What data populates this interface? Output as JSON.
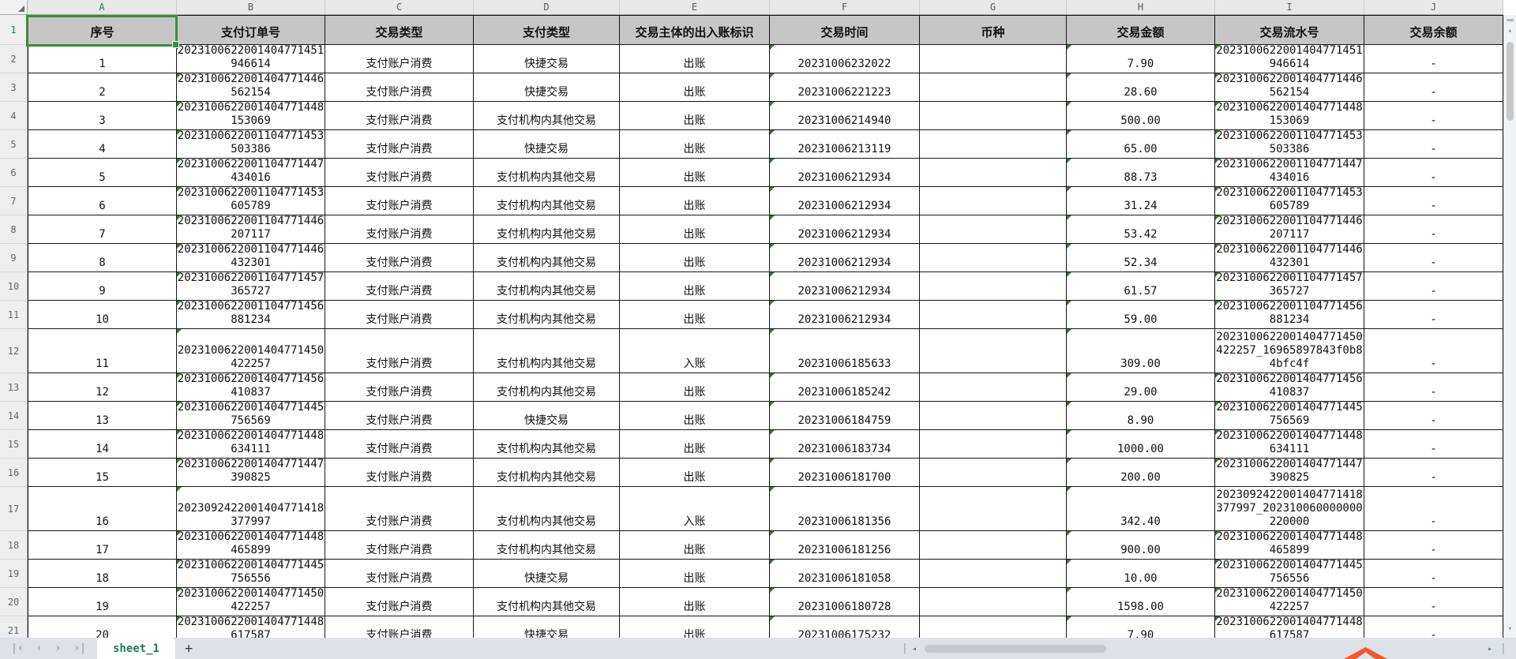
{
  "colors": {
    "selection_green": "#3f8a3f",
    "indicator_green": "#2e7d32",
    "header_bg": "#c6c6c6",
    "letters_bg": "#e8e8e8",
    "tabbar_bg": "#dce2e7",
    "active_tab_text": "#1e7a5e",
    "accent_orange": "#f15a2b"
  },
  "grid": {
    "selected_cell": "A1",
    "column_letters": [
      "A",
      "B",
      "C",
      "D",
      "E",
      "F",
      "G",
      "H",
      "I",
      "J"
    ],
    "row_numbers": [
      "1",
      "2",
      "3",
      "4",
      "5",
      "6",
      "7",
      "8",
      "9",
      "10",
      "11",
      "12",
      "13",
      "14",
      "15",
      "16",
      "17",
      "18",
      "19",
      "20",
      "21"
    ],
    "headers": [
      "序号",
      "支付订单号",
      "交易类型",
      "支付类型",
      "交易主体的出入账标识",
      "交易时间",
      "币种",
      "交易金额",
      "交易流水号",
      "交易余额"
    ],
    "rows": [
      {
        "seq": "1",
        "order_no": "2023100622001404771451946614",
        "txn_type": "支付账户消费",
        "pay_type": "快捷交易",
        "flow_flag": "出账",
        "time": "20231006232022",
        "currency": "",
        "amount": "7.90",
        "flow_no": "2023100622001404771451946614",
        "balance": "-"
      },
      {
        "seq": "2",
        "order_no": "2023100622001404771446562154",
        "txn_type": "支付账户消费",
        "pay_type": "快捷交易",
        "flow_flag": "出账",
        "time": "20231006221223",
        "currency": "",
        "amount": "28.60",
        "flow_no": "2023100622001404771446562154",
        "balance": "-"
      },
      {
        "seq": "3",
        "order_no": "2023100622001404771448153069",
        "txn_type": "支付账户消费",
        "pay_type": "支付机构内其他交易",
        "flow_flag": "出账",
        "time": "20231006214940",
        "currency": "",
        "amount": "500.00",
        "flow_no": "2023100622001404771448153069",
        "balance": "-"
      },
      {
        "seq": "4",
        "order_no": "2023100622001104771453503386",
        "txn_type": "支付账户消费",
        "pay_type": "快捷交易",
        "flow_flag": "出账",
        "time": "20231006213119",
        "currency": "",
        "amount": "65.00",
        "flow_no": "2023100622001104771453503386",
        "balance": "-"
      },
      {
        "seq": "5",
        "order_no": "2023100622001104771447434016",
        "txn_type": "支付账户消费",
        "pay_type": "支付机构内其他交易",
        "flow_flag": "出账",
        "time": "20231006212934",
        "currency": "",
        "amount": "88.73",
        "flow_no": "2023100622001104771447434016",
        "balance": "-"
      },
      {
        "seq": "6",
        "order_no": "2023100622001104771453605789",
        "txn_type": "支付账户消费",
        "pay_type": "支付机构内其他交易",
        "flow_flag": "出账",
        "time": "20231006212934",
        "currency": "",
        "amount": "31.24",
        "flow_no": "2023100622001104771453605789",
        "balance": "-"
      },
      {
        "seq": "7",
        "order_no": "2023100622001104771446207117",
        "txn_type": "支付账户消费",
        "pay_type": "支付机构内其他交易",
        "flow_flag": "出账",
        "time": "20231006212934",
        "currency": "",
        "amount": "53.42",
        "flow_no": "2023100622001104771446207117",
        "balance": "-"
      },
      {
        "seq": "8",
        "order_no": "2023100622001104771446432301",
        "txn_type": "支付账户消费",
        "pay_type": "支付机构内其他交易",
        "flow_flag": "出账",
        "time": "20231006212934",
        "currency": "",
        "amount": "52.34",
        "flow_no": "2023100622001104771446432301",
        "balance": "-"
      },
      {
        "seq": "9",
        "order_no": "2023100622001104771457365727",
        "txn_type": "支付账户消费",
        "pay_type": "支付机构内其他交易",
        "flow_flag": "出账",
        "time": "20231006212934",
        "currency": "",
        "amount": "61.57",
        "flow_no": "2023100622001104771457365727",
        "balance": "-"
      },
      {
        "seq": "10",
        "order_no": "2023100622001104771456881234",
        "txn_type": "支付账户消费",
        "pay_type": "支付机构内其他交易",
        "flow_flag": "出账",
        "time": "20231006212934",
        "currency": "",
        "amount": "59.00",
        "flow_no": "2023100622001104771456881234",
        "balance": "-"
      },
      {
        "seq": "11",
        "order_no": "2023100622001404771450422257",
        "txn_type": "支付账户消费",
        "pay_type": "支付机构内其他交易",
        "flow_flag": "入账",
        "time": "20231006185633",
        "currency": "",
        "amount": "309.00",
        "flow_no": "2023100622001404771450422257_16965897843f0b84bfc4f",
        "balance": "-"
      },
      {
        "seq": "12",
        "order_no": "2023100622001404771456410837",
        "txn_type": "支付账户消费",
        "pay_type": "支付机构内其他交易",
        "flow_flag": "出账",
        "time": "20231006185242",
        "currency": "",
        "amount": "29.00",
        "flow_no": "2023100622001404771456410837",
        "balance": "-"
      },
      {
        "seq": "13",
        "order_no": "2023100622001404771445756569",
        "txn_type": "支付账户消费",
        "pay_type": "快捷交易",
        "flow_flag": "出账",
        "time": "20231006184759",
        "currency": "",
        "amount": "8.90",
        "flow_no": "2023100622001404771445756569",
        "balance": "-"
      },
      {
        "seq": "14",
        "order_no": "2023100622001404771448634111",
        "txn_type": "支付账户消费",
        "pay_type": "支付机构内其他交易",
        "flow_flag": "出账",
        "time": "20231006183734",
        "currency": "",
        "amount": "1000.00",
        "flow_no": "2023100622001404771448634111",
        "balance": "-"
      },
      {
        "seq": "15",
        "order_no": "2023100622001404771447390825",
        "txn_type": "支付账户消费",
        "pay_type": "支付机构内其他交易",
        "flow_flag": "出账",
        "time": "20231006181700",
        "currency": "",
        "amount": "200.00",
        "flow_no": "2023100622001404771447390825",
        "balance": "-"
      },
      {
        "seq": "16",
        "order_no": "2023092422001404771418377997",
        "txn_type": "支付账户消费",
        "pay_type": "支付机构内其他交易",
        "flow_flag": "入账",
        "time": "20231006181356",
        "currency": "",
        "amount": "342.40",
        "flow_no": "2023092422001404771418377997_202310060000000220000",
        "balance": "-"
      },
      {
        "seq": "17",
        "order_no": "2023100622001404771448465899",
        "txn_type": "支付账户消费",
        "pay_type": "支付机构内其他交易",
        "flow_flag": "出账",
        "time": "20231006181256",
        "currency": "",
        "amount": "900.00",
        "flow_no": "2023100622001404771448465899",
        "balance": "-"
      },
      {
        "seq": "18",
        "order_no": "2023100622001404771445756556",
        "txn_type": "支付账户消费",
        "pay_type": "快捷交易",
        "flow_flag": "出账",
        "time": "20231006181058",
        "currency": "",
        "amount": "10.00",
        "flow_no": "2023100622001404771445756556",
        "balance": "-"
      },
      {
        "seq": "19",
        "order_no": "2023100622001404771450422257",
        "txn_type": "支付账户消费",
        "pay_type": "支付机构内其他交易",
        "flow_flag": "出账",
        "time": "20231006180728",
        "currency": "",
        "amount": "1598.00",
        "flow_no": "2023100622001404771450422257",
        "balance": "-"
      },
      {
        "seq": "20",
        "order_no": "2023100622001404771448617587",
        "txn_type": "支付账户消费",
        "pay_type": "快捷交易",
        "flow_flag": "出账",
        "time": "20231006175232",
        "currency": "",
        "amount": "7.90",
        "flow_no": "2023100622001404771448617587",
        "balance": "-"
      }
    ]
  },
  "sheet_tabs": {
    "active": "sheet_1",
    "add_label": "+",
    "nav_icons": [
      "|‹",
      "‹",
      "›",
      "›|"
    ]
  },
  "scrollbars": {
    "up_arrow": "▴",
    "down_arrow": "▾",
    "left_arrow": "◂",
    "right_arrow": "▸",
    "divider": "|"
  }
}
